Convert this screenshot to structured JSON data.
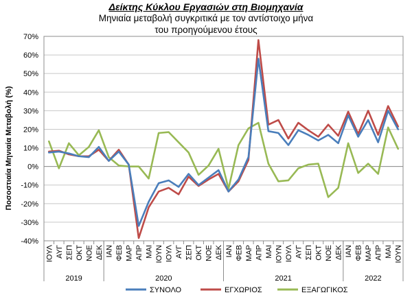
{
  "chart_data": {
    "type": "line",
    "title": "Δείκτης Κύκλου Εργασιών στη Βιομηχανία",
    "subtitle_line1": "Μηνιαία μεταβολή συγκριτικά με τον αντίστοιχο μήνα",
    "subtitle_line2": "του προηγούμενου έτους",
    "ylabel": "Ποσοστιαία Μηνιαία Μεταβολή (%)",
    "ylim": [
      -40,
      70
    ],
    "ytick_step": 10,
    "ytick_labels": [
      "-40%",
      "-30%",
      "-20%",
      "-10%",
      "0%",
      "10%",
      "20%",
      "30%",
      "40%",
      "50%",
      "60%",
      "70%"
    ],
    "grid": true,
    "legend_position": "bottom",
    "categories": [
      "ΙΟΥΛ",
      "ΑΥΓ",
      "ΣΕΠ",
      "ΟΚΤ",
      "ΝΟΕ",
      "ΔΕΚ",
      "ΙΑΝ",
      "ΦΕΒ",
      "ΜΑΡ",
      "ΑΠΡ",
      "ΜΑΙ",
      "ΙΟΥΝ",
      "ΙΟΥΛ",
      "ΑΥΓ",
      "ΣΕΠ",
      "ΟΚΤ",
      "ΝΟΕ",
      "ΔΕΚ",
      "ΙΑΝ",
      "ΦΕΒ",
      "ΜΑΡ",
      "ΑΠΡ",
      "ΜΑΙ",
      "ΙΟΥΝ",
      "ΙΟΥΛ",
      "ΑΥΓ",
      "ΣΕΠ",
      "ΟΚΤ",
      "ΝΟΕ",
      "ΔΕΚ",
      "ΙΑΝ",
      "ΦΕΒ",
      "ΜΑΡ",
      "ΑΠΡ",
      "ΜΑΙ",
      "ΙΟΥΝ"
    ],
    "years": [
      {
        "label": "2019",
        "start": 0,
        "end": 5
      },
      {
        "label": "2020",
        "start": 6,
        "end": 17
      },
      {
        "label": "2021",
        "start": 18,
        "end": 29
      },
      {
        "label": "2022",
        "start": 30,
        "end": 35
      }
    ],
    "series": [
      {
        "name": "ΣΥΝΟΛΟ",
        "color": "#4a7ebb",
        "values": [
          7.5,
          8,
          7,
          5.5,
          5,
          10.5,
          3,
          8,
          1,
          -32,
          -19,
          -9,
          -7.5,
          -11,
          -4,
          -10,
          -6,
          -2,
          -13.5,
          -7,
          5,
          58,
          19,
          18,
          11.5,
          19.5,
          17,
          14,
          17,
          12.5,
          27.5,
          16,
          25,
          13,
          30,
          20
        ]
      },
      {
        "name": "ΕΓΧΩΡΙΟΣ",
        "color": "#be4b48",
        "values": [
          8,
          8.5,
          6.5,
          5.5,
          5.5,
          9,
          3,
          9,
          1,
          -38.5,
          -22,
          -13.5,
          -11.5,
          -15,
          -5.5,
          -10.5,
          -7,
          -4,
          -13.5,
          -8,
          3.5,
          68,
          22.5,
          25,
          15,
          23.5,
          19.5,
          16,
          22.5,
          16.5,
          29.5,
          17.5,
          30,
          17,
          32.5,
          21.5
        ]
      },
      {
        "name": "ΕΞΑΓΩΓΙΚΟΣ",
        "color": "#98b954",
        "values": [
          13.5,
          -1,
          12.5,
          6,
          10.5,
          19.5,
          5,
          0.5,
          0,
          0,
          -6.5,
          18,
          18.5,
          13,
          7.5,
          -4.5,
          0.5,
          9.5,
          -12,
          11.5,
          20.5,
          23.5,
          1.5,
          -8,
          -7.5,
          -1,
          1,
          1.5,
          -16.5,
          -11.5,
          12.5,
          -3.5,
          1.5,
          -4,
          21,
          9.5
        ]
      }
    ]
  }
}
